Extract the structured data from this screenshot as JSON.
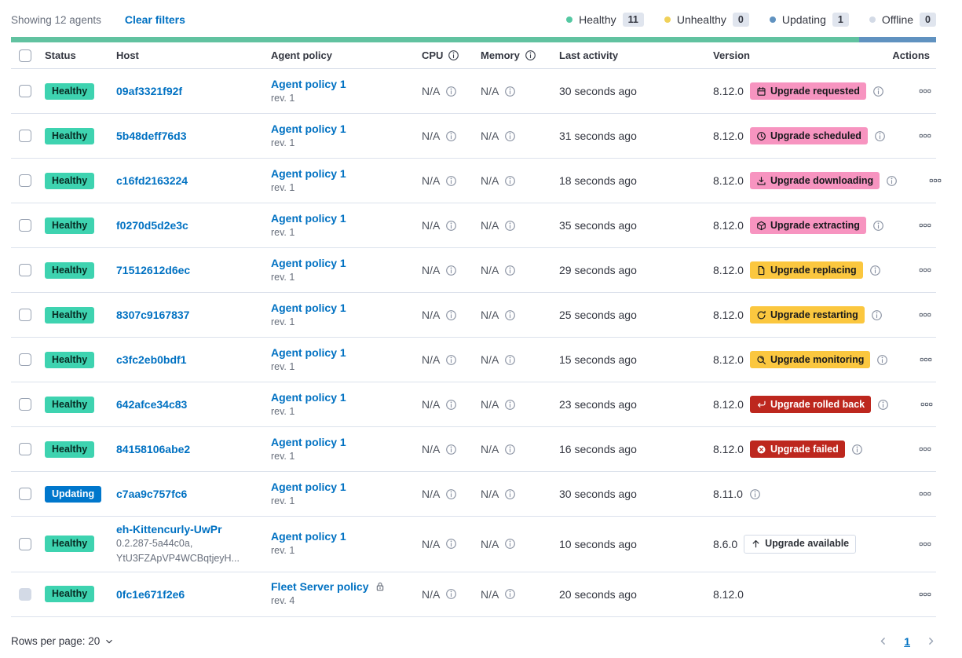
{
  "toolbar": {
    "showing": "Showing 12 agents",
    "clear_filters": "Clear filters"
  },
  "legend": {
    "items": [
      {
        "label": "Healthy",
        "count": "11",
        "color": "#54c8a2"
      },
      {
        "label": "Unhealthy",
        "count": "0",
        "color": "#f0d159"
      },
      {
        "label": "Updating",
        "count": "1",
        "color": "#6092c0"
      },
      {
        "label": "Offline",
        "count": "0",
        "color": "#d3dae6"
      }
    ]
  },
  "status_bar": {
    "segments": [
      {
        "status": "healthy",
        "fraction": 0.9167,
        "color": "#61c2a0"
      },
      {
        "status": "updating",
        "fraction": 0.0833,
        "color": "#6092c0"
      }
    ]
  },
  "table": {
    "headers": {
      "status": "Status",
      "host": "Host",
      "policy": "Agent policy",
      "cpu": "CPU",
      "memory": "Memory",
      "last_activity": "Last activity",
      "version": "Version",
      "actions": "Actions"
    },
    "rows": [
      {
        "status": {
          "label": "Healthy",
          "type": "healthy"
        },
        "host": {
          "name": "09af3321f92f",
          "sub1": null,
          "sub2": null
        },
        "policy": {
          "name": "Agent policy 1",
          "rev": "rev. 1",
          "locked": false
        },
        "cpu": "N/A",
        "memory": "N/A",
        "last_activity": "30 seconds ago",
        "version": "8.12.0",
        "upgrade_badge": {
          "label": "Upgrade requested",
          "icon": "calendar",
          "style": "pink"
        },
        "version_info": true,
        "checkbox_disabled": false
      },
      {
        "status": {
          "label": "Healthy",
          "type": "healthy"
        },
        "host": {
          "name": "5b48deff76d3",
          "sub1": null,
          "sub2": null
        },
        "policy": {
          "name": "Agent policy 1",
          "rev": "rev. 1",
          "locked": false
        },
        "cpu": "N/A",
        "memory": "N/A",
        "last_activity": "31 seconds ago",
        "version": "8.12.0",
        "upgrade_badge": {
          "label": "Upgrade scheduled",
          "icon": "clock",
          "style": "pink"
        },
        "version_info": true,
        "checkbox_disabled": false
      },
      {
        "status": {
          "label": "Healthy",
          "type": "healthy"
        },
        "host": {
          "name": "c16fd2163224",
          "sub1": null,
          "sub2": null
        },
        "policy": {
          "name": "Agent policy 1",
          "rev": "rev. 1",
          "locked": false
        },
        "cpu": "N/A",
        "memory": "N/A",
        "last_activity": "18 seconds ago",
        "version": "8.12.0",
        "upgrade_badge": {
          "label": "Upgrade downloading",
          "icon": "download",
          "style": "pink"
        },
        "version_info": true,
        "checkbox_disabled": false
      },
      {
        "status": {
          "label": "Healthy",
          "type": "healthy"
        },
        "host": {
          "name": "f0270d5d2e3c",
          "sub1": null,
          "sub2": null
        },
        "policy": {
          "name": "Agent policy 1",
          "rev": "rev. 1",
          "locked": false
        },
        "cpu": "N/A",
        "memory": "N/A",
        "last_activity": "35 seconds ago",
        "version": "8.12.0",
        "upgrade_badge": {
          "label": "Upgrade extracting",
          "icon": "package",
          "style": "pink"
        },
        "version_info": true,
        "checkbox_disabled": false
      },
      {
        "status": {
          "label": "Healthy",
          "type": "healthy"
        },
        "host": {
          "name": "71512612d6ec",
          "sub1": null,
          "sub2": null
        },
        "policy": {
          "name": "Agent policy 1",
          "rev": "rev. 1",
          "locked": false
        },
        "cpu": "N/A",
        "memory": "N/A",
        "last_activity": "29 seconds ago",
        "version": "8.12.0",
        "upgrade_badge": {
          "label": "Upgrade replacing",
          "icon": "document",
          "style": "warning"
        },
        "version_info": true,
        "checkbox_disabled": false
      },
      {
        "status": {
          "label": "Healthy",
          "type": "healthy"
        },
        "host": {
          "name": "8307c9167837",
          "sub1": null,
          "sub2": null
        },
        "policy": {
          "name": "Agent policy 1",
          "rev": "rev. 1",
          "locked": false
        },
        "cpu": "N/A",
        "memory": "N/A",
        "last_activity": "25 seconds ago",
        "version": "8.12.0",
        "upgrade_badge": {
          "label": "Upgrade restarting",
          "icon": "refresh",
          "style": "warning"
        },
        "version_info": true,
        "checkbox_disabled": false
      },
      {
        "status": {
          "label": "Healthy",
          "type": "healthy"
        },
        "host": {
          "name": "c3fc2eb0bdf1",
          "sub1": null,
          "sub2": null
        },
        "policy": {
          "name": "Agent policy 1",
          "rev": "rev. 1",
          "locked": false
        },
        "cpu": "N/A",
        "memory": "N/A",
        "last_activity": "15 seconds ago",
        "version": "8.12.0",
        "upgrade_badge": {
          "label": "Upgrade monitoring",
          "icon": "monitor",
          "style": "warning"
        },
        "version_info": true,
        "checkbox_disabled": false
      },
      {
        "status": {
          "label": "Healthy",
          "type": "healthy"
        },
        "host": {
          "name": "642afce34c83",
          "sub1": null,
          "sub2": null
        },
        "policy": {
          "name": "Agent policy 1",
          "rev": "rev. 1",
          "locked": false
        },
        "cpu": "N/A",
        "memory": "N/A",
        "last_activity": "23 seconds ago",
        "version": "8.12.0",
        "upgrade_badge": {
          "label": "Upgrade rolled back",
          "icon": "return-arrow",
          "style": "danger"
        },
        "version_info": true,
        "checkbox_disabled": false
      },
      {
        "status": {
          "label": "Healthy",
          "type": "healthy"
        },
        "host": {
          "name": "84158106abe2",
          "sub1": null,
          "sub2": null
        },
        "policy": {
          "name": "Agent policy 1",
          "rev": "rev. 1",
          "locked": false
        },
        "cpu": "N/A",
        "memory": "N/A",
        "last_activity": "16 seconds ago",
        "version": "8.12.0",
        "upgrade_badge": {
          "label": "Upgrade failed",
          "icon": "cross-in-circle",
          "style": "danger"
        },
        "version_info": true,
        "checkbox_disabled": false
      },
      {
        "status": {
          "label": "Updating",
          "type": "updating"
        },
        "host": {
          "name": "c7aa9c757fc6",
          "sub1": null,
          "sub2": null
        },
        "policy": {
          "name": "Agent policy 1",
          "rev": "rev. 1",
          "locked": false
        },
        "cpu": "N/A",
        "memory": "N/A",
        "last_activity": "30 seconds ago",
        "version": "8.11.0",
        "upgrade_badge": null,
        "version_info": true,
        "checkbox_disabled": false
      },
      {
        "status": {
          "label": "Healthy",
          "type": "healthy"
        },
        "host": {
          "name": "eh-Kittencurly-UwPr",
          "sub1": "0.2.287-5a44c0a,",
          "sub2": "YtU3FZApVP4WCBqtjeyH..."
        },
        "policy": {
          "name": "Agent policy 1",
          "rev": "rev. 1",
          "locked": false
        },
        "cpu": "N/A",
        "memory": "N/A",
        "last_activity": "10 seconds ago",
        "version": "8.6.0",
        "upgrade_badge": {
          "label": "Upgrade available",
          "icon": "arrow-up",
          "style": "outline"
        },
        "version_info": false,
        "checkbox_disabled": false
      },
      {
        "status": {
          "label": "Healthy",
          "type": "healthy"
        },
        "host": {
          "name": "0fc1e671f2e6",
          "sub1": null,
          "sub2": null
        },
        "policy": {
          "name": "Fleet Server policy",
          "rev": "rev. 4",
          "locked": true
        },
        "cpu": "N/A",
        "memory": "N/A",
        "last_activity": "20 seconds ago",
        "version": "8.12.0",
        "upgrade_badge": null,
        "version_info": false,
        "checkbox_disabled": true
      }
    ]
  },
  "footer": {
    "rows_per_page": "Rows per page: 20",
    "page_number": "1"
  },
  "colors": {
    "healthy_badge": "#3ed3b0",
    "updating_badge": "#0077cc",
    "accent_pink": "#f794c0",
    "warning_yellow": "#fbc73f",
    "danger_red": "#bd271e",
    "link_blue": "#0071c2"
  }
}
